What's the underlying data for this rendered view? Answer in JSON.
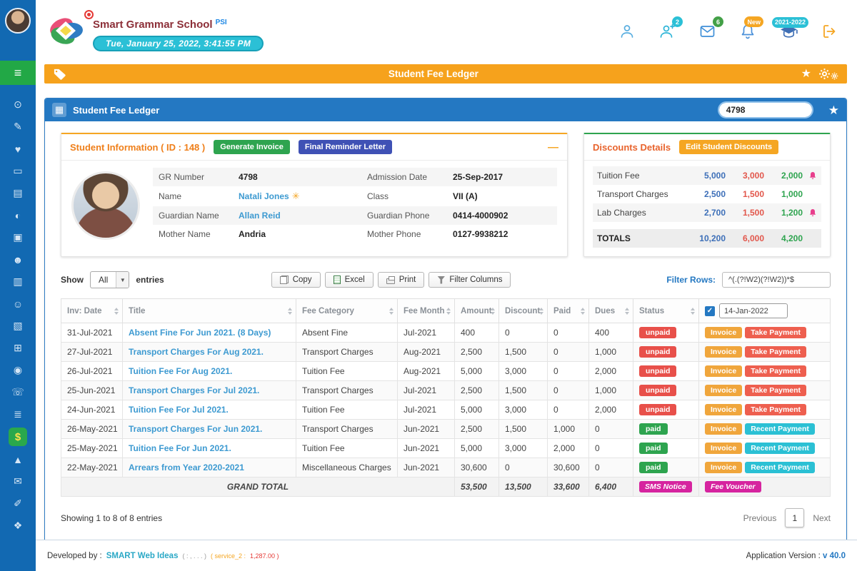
{
  "header": {
    "school_name": "Smart Grammar School",
    "school_suffix": "PSI",
    "datetime": "Tue, January 25, 2022, 3:41:55 PM",
    "badges": {
      "students": "2",
      "messages": "6",
      "notifications": "New",
      "session": "2021-2022"
    }
  },
  "title_bar": {
    "title": "Student Fee Ledger"
  },
  "sidebar": {
    "items": [
      {
        "name": "dashboard",
        "glyph": "⊙"
      },
      {
        "name": "student-admission",
        "glyph": "✎"
      },
      {
        "name": "student-welfare",
        "glyph": "♥"
      },
      {
        "name": "id-cards",
        "glyph": "▭"
      },
      {
        "name": "news-board",
        "glyph": "▤"
      },
      {
        "name": "web-portal",
        "glyph": "◐"
      },
      {
        "name": "inventory",
        "glyph": "▣"
      },
      {
        "name": "students",
        "glyph": "☻"
      },
      {
        "name": "attendance",
        "glyph": "▥"
      },
      {
        "name": "staff",
        "glyph": "☺"
      },
      {
        "name": "exams",
        "glyph": "▧"
      },
      {
        "name": "e-learning",
        "glyph": "⊞"
      },
      {
        "name": "student-profile",
        "glyph": "◉"
      },
      {
        "name": "support",
        "glyph": "☏"
      },
      {
        "name": "accounts",
        "glyph": "≣"
      },
      {
        "name": "fee-ledger",
        "glyph": "$",
        "active": true
      },
      {
        "name": "transport",
        "glyph": "▲"
      },
      {
        "name": "messaging",
        "glyph": "✉"
      },
      {
        "name": "reports",
        "glyph": "✐"
      },
      {
        "name": "certificates",
        "glyph": "❖"
      }
    ]
  },
  "ledger_panel": {
    "title": "Student Fee Ledger",
    "search_value": "4798"
  },
  "student_info": {
    "title": "Student Information ( ID : 148 )",
    "buttons": {
      "generate_invoice": "Generate Invoice",
      "final_reminder": "Final Reminder Letter"
    },
    "rows": [
      {
        "label": "GR Number",
        "value": "4798",
        "link": false,
        "icon": false,
        "label2": "Admission Date",
        "value2": "25-Sep-2017"
      },
      {
        "label": "Name",
        "value": "Natali Jones",
        "link": true,
        "icon": true,
        "label2": "Class",
        "value2": "VII (A)"
      },
      {
        "label": "Guardian Name",
        "value": "Allan Reid",
        "link": true,
        "icon": false,
        "label2": "Guardian Phone",
        "value2": "0414-4000902"
      },
      {
        "label": "Mother Name",
        "value": "Andria",
        "link": false,
        "icon": false,
        "label2": "Mother Phone",
        "value2": "0127-9938212"
      }
    ]
  },
  "discounts": {
    "title": "Discounts Details",
    "edit_button": "Edit Student Discounts",
    "rows": [
      {
        "name": "Tuition Fee",
        "full": "5,000",
        "discount": "3,000",
        "net": "2,000",
        "bell": true
      },
      {
        "name": "Transport Charges",
        "full": "2,500",
        "discount": "1,500",
        "net": "1,000",
        "bell": false
      },
      {
        "name": "Lab Charges",
        "full": "2,700",
        "discount": "1,500",
        "net": "1,200",
        "bell": true
      }
    ],
    "totals": {
      "label": "TOTALS",
      "full": "10,200",
      "discount": "6,000",
      "net": "4,200"
    }
  },
  "controls": {
    "show_label": "Show",
    "show_value": "All",
    "entries_label": "entries",
    "export_buttons": [
      {
        "label": "Copy",
        "icon": "copy-icon"
      },
      {
        "label": "Excel",
        "icon": "excel-icon"
      },
      {
        "label": "Print",
        "icon": "print-icon"
      },
      {
        "label": "Filter Columns",
        "icon": "filter-icon"
      }
    ],
    "filter_rows_label": "Filter Rows:",
    "filter_rows_value": "^(.(?!W2)(?!W2))*$"
  },
  "table": {
    "headers": [
      "Inv: Date",
      "Title",
      "Fee Category",
      "Fee Month",
      "Amount",
      "Discount",
      "Paid",
      "Dues",
      "Status"
    ],
    "date_filter_value": "14-Jan-2022",
    "rows": [
      {
        "date": "31-Jul-2021",
        "title": "Absent Fine For Jun 2021. (8 Days)",
        "category": "Absent Fine",
        "month": "Jul-2021",
        "amount": "400",
        "discount": "0",
        "paid": "0",
        "dues": "400",
        "status": "unpaid",
        "actions": [
          "Invoice",
          "Take Payment"
        ]
      },
      {
        "date": "27-Jul-2021",
        "title": "Transport Charges For Aug 2021.",
        "category": "Transport Charges",
        "month": "Aug-2021",
        "amount": "2,500",
        "discount": "1,500",
        "paid": "0",
        "dues": "1,000",
        "status": "unpaid",
        "actions": [
          "Invoice",
          "Take Payment"
        ]
      },
      {
        "date": "26-Jul-2021",
        "title": "Tuition Fee For Aug 2021.",
        "category": "Tuition Fee",
        "month": "Aug-2021",
        "amount": "5,000",
        "discount": "3,000",
        "paid": "0",
        "dues": "2,000",
        "status": "unpaid",
        "actions": [
          "Invoice",
          "Take Payment"
        ]
      },
      {
        "date": "25-Jun-2021",
        "title": "Transport Charges For Jul 2021.",
        "category": "Transport Charges",
        "month": "Jul-2021",
        "amount": "2,500",
        "discount": "1,500",
        "paid": "0",
        "dues": "1,000",
        "status": "unpaid",
        "actions": [
          "Invoice",
          "Take Payment"
        ]
      },
      {
        "date": "24-Jun-2021",
        "title": "Tuition Fee For Jul 2021.",
        "category": "Tuition Fee",
        "month": "Jul-2021",
        "amount": "5,000",
        "discount": "3,000",
        "paid": "0",
        "dues": "2,000",
        "status": "unpaid",
        "actions": [
          "Invoice",
          "Take Payment"
        ]
      },
      {
        "date": "26-May-2021",
        "title": "Transport Charges For Jun 2021.",
        "category": "Transport Charges",
        "month": "Jun-2021",
        "amount": "2,500",
        "discount": "1,500",
        "paid": "1,000",
        "dues": "0",
        "status": "paid",
        "actions": [
          "Invoice",
          "Recent Payment"
        ]
      },
      {
        "date": "25-May-2021",
        "title": "Tuition Fee For Jun 2021.",
        "category": "Tuition Fee",
        "month": "Jun-2021",
        "amount": "5,000",
        "discount": "3,000",
        "paid": "2,000",
        "dues": "0",
        "status": "paid",
        "actions": [
          "Invoice",
          "Recent Payment"
        ]
      },
      {
        "date": "22-May-2021",
        "title": "Arrears from Year 2020-2021",
        "category": "Miscellaneous Charges",
        "month": "Jun-2021",
        "amount": "30,600",
        "discount": "0",
        "paid": "30,600",
        "dues": "0",
        "status": "paid",
        "actions": [
          "Invoice",
          "Recent Payment"
        ]
      }
    ],
    "grand_total": {
      "label": "GRAND TOTAL",
      "amount": "53,500",
      "discount": "13,500",
      "paid": "33,600",
      "dues": "6,400",
      "status_button": "SMS Notice",
      "action_button": "Fee Voucher"
    }
  },
  "footer_bar": {
    "showing": "Showing 1 to 8 of 8 entries",
    "previous": "Previous",
    "page": "1",
    "next": "Next"
  },
  "page_footer": {
    "developed_prefix": "Developed by :",
    "developer": "SMART Web Ideas",
    "note1": "( : , . . . )",
    "service_label": "( service_2 :",
    "service_value": "1,287.00 )",
    "version_label": "Application Version :",
    "version": "v 40.0"
  }
}
